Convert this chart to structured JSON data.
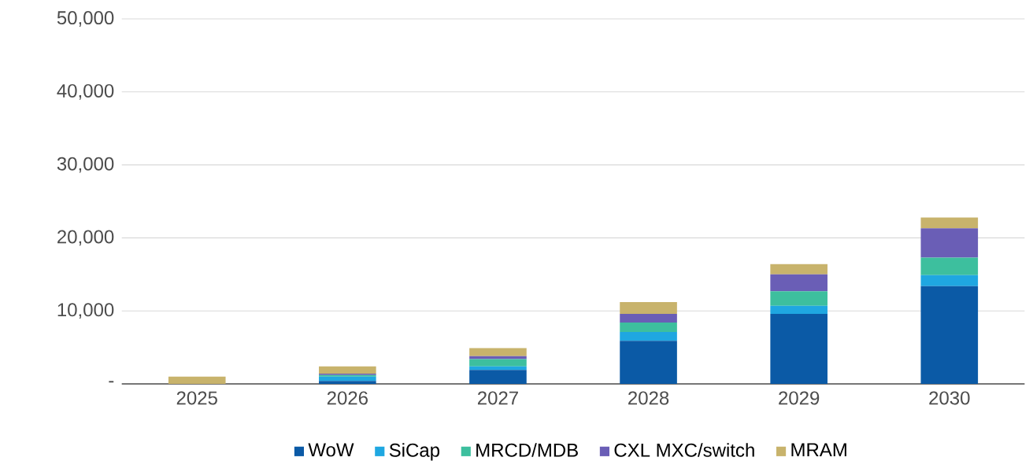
{
  "chart_data": {
    "type": "bar",
    "stacked": true,
    "categories": [
      "2025",
      "2026",
      "2027",
      "2028",
      "2029",
      "2030"
    ],
    "series": [
      {
        "name": "WoW",
        "color": "#0b5aa6",
        "values": [
          0,
          400,
          1900,
          5900,
          9600,
          13400
        ]
      },
      {
        "name": "SiCap",
        "color": "#1fa7e1",
        "values": [
          0,
          600,
          500,
          1200,
          1100,
          1500
        ]
      },
      {
        "name": "MRCD/MDB",
        "color": "#3dbf9e",
        "values": [
          0,
          200,
          1000,
          1300,
          2000,
          2400
        ]
      },
      {
        "name": "CXL MXC/switch",
        "color": "#6a5eb6",
        "values": [
          0,
          200,
          400,
          1200,
          2300,
          4000
        ]
      },
      {
        "name": "MRAM",
        "color": "#c8b36c",
        "values": [
          1000,
          1000,
          1100,
          1600,
          1400,
          1500
        ]
      }
    ],
    "ylim": [
      0,
      50000
    ],
    "yticks": [
      {
        "value": 0,
        "label": "-"
      },
      {
        "value": 10000,
        "label": "10,000"
      },
      {
        "value": 20000,
        "label": "20,000"
      },
      {
        "value": 30000,
        "label": "30,000"
      },
      {
        "value": 40000,
        "label": "40,000"
      },
      {
        "value": 50000,
        "label": "50,000"
      }
    ],
    "grid": "y",
    "legend": "bottom"
  }
}
